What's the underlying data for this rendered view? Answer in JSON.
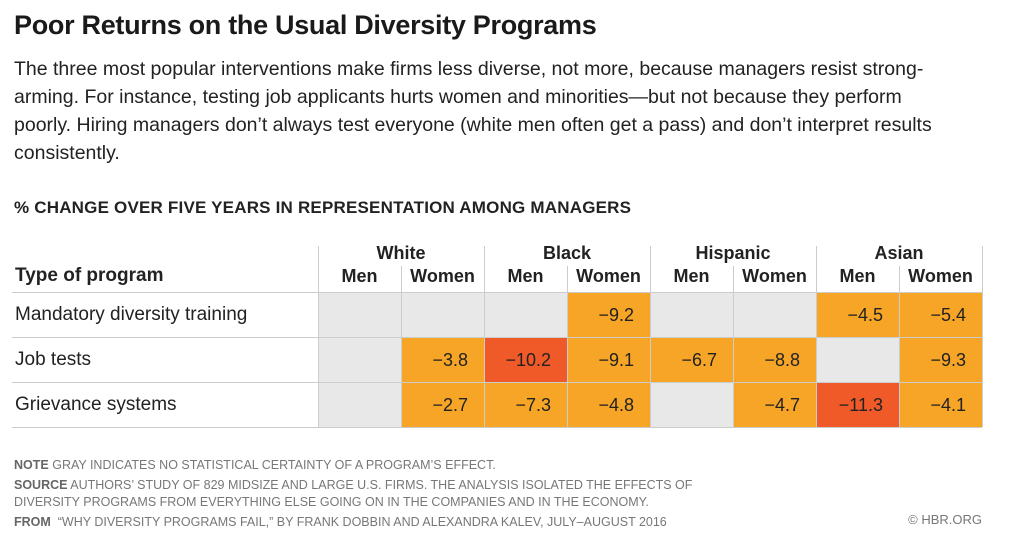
{
  "title": "Poor Returns on the Usual Diversity Programs",
  "description": "The three most popular interventions make firms less diverse, not more, because managers resist strong-arming. For instance, testing job applicants hurts women and minorities—but not because they perform poorly. Hiring managers don’t always test everyone (white men often get a pass) and don’t interpret results consistently.",
  "colors": {
    "significant": "#f7a527",
    "strong": "#f05a28",
    "not_significant": "#e8e8e8"
  },
  "chart_data": {
    "type": "heatmap",
    "title": "% CHANGE OVER FIVE YEARS IN REPRESENTATION AMONG MANAGERS",
    "row_header": "Type of program",
    "groups": [
      "White",
      "Black",
      "Hispanic",
      "Asian"
    ],
    "subgroups": [
      "Men",
      "Women"
    ],
    "rows": [
      {
        "label": "Mandatory diversity training",
        "values": [
          null,
          null,
          null,
          "−9.2",
          null,
          null,
          "−4.5",
          "−5.4"
        ]
      },
      {
        "label": "Job tests",
        "values": [
          null,
          "−3.8",
          "−10.2",
          "−9.1",
          "−6.7",
          "−8.8",
          null,
          "−9.3"
        ]
      },
      {
        "label": "Grievance systems",
        "values": [
          null,
          "−2.7",
          "−7.3",
          "−4.8",
          null,
          "−4.7",
          "−11.3",
          "−4.1"
        ]
      }
    ],
    "null_meaning": "gray"
  },
  "notes": {
    "note_label": "NOTE",
    "note": "Gray indicates no statistical certainty of a program’s effect.",
    "source_label": "SOURCE",
    "source": "Authors’ study of 829 midsize and large U.S. firms. The analysis isolated the effects of diversity programs from everything else going on in the companies and in the economy.",
    "from_label": "FROM",
    "from": "“Why Diversity Programs Fail,” by Frank Dobbin and Alexandra Kalev, July–August 2016",
    "credit": "© HBR.ORG"
  }
}
